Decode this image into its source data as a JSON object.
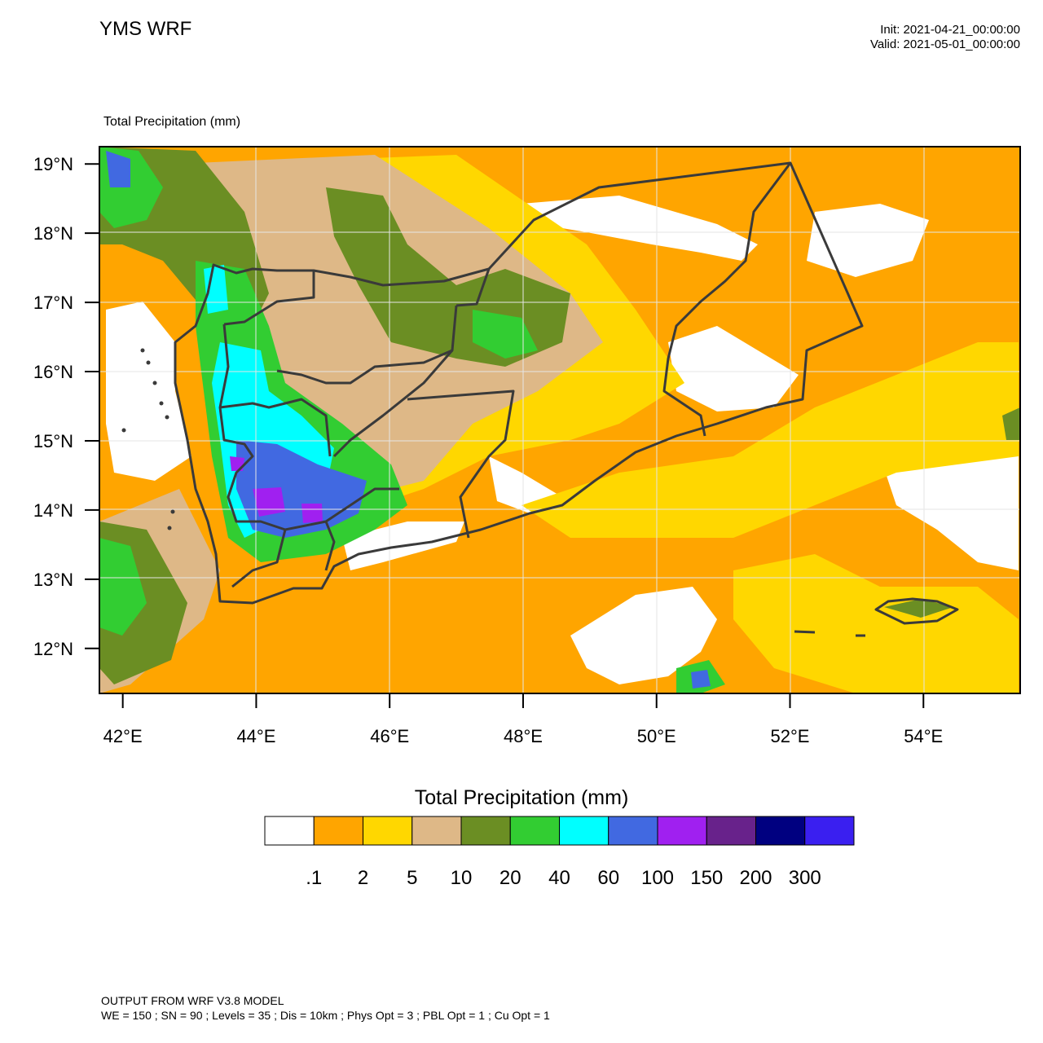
{
  "header": {
    "title": "YMS WRF",
    "init": "Init: 2021-04-21_00:00:00",
    "valid": "Valid: 2021-05-01_00:00:00"
  },
  "field_title": "Total Precipitation   (mm)",
  "map": {
    "lon_range": [
      41.65,
      55.45
    ],
    "lat_range": [
      11.35,
      19.25
    ],
    "lon_ticks": [
      {
        "value": 42,
        "label": "42°E"
      },
      {
        "value": 44,
        "label": "44°E"
      },
      {
        "value": 46,
        "label": "46°E"
      },
      {
        "value": 48,
        "label": "48°E"
      },
      {
        "value": 50,
        "label": "50°E"
      },
      {
        "value": 52,
        "label": "52°E"
      },
      {
        "value": 54,
        "label": "54°E"
      }
    ],
    "lat_ticks": [
      {
        "value": 19,
        "label": "19°N"
      },
      {
        "value": 18,
        "label": "18°N"
      },
      {
        "value": 17,
        "label": "17°N"
      },
      {
        "value": 16,
        "label": "16°N"
      },
      {
        "value": 15,
        "label": "15°N"
      },
      {
        "value": 14,
        "label": "14°N"
      },
      {
        "value": 13,
        "label": "13°N"
      },
      {
        "value": 12,
        "label": "12°N"
      }
    ]
  },
  "legend": {
    "title": "Total Precipitation  (mm)",
    "colors": [
      "#ffffff",
      "#ffa500",
      "#ffd700",
      "#deb887",
      "#6b8e23",
      "#32cd32",
      "#00ffff",
      "#4169e1",
      "#a020f0",
      "#68228b",
      "#000080",
      "#3a1ff0"
    ],
    "labels": [
      ".1",
      "2",
      "5",
      "10",
      "20",
      "40",
      "60",
      "100",
      "150",
      "200",
      "300"
    ]
  },
  "footer": {
    "line1": "OUTPUT FROM WRF V3.8 MODEL",
    "line2": "WE = 150 ; SN = 90 ; Levels = 35 ; Dis = 10km ; Phys Opt = 3 ; PBL Opt = 1 ; Cu Opt = 1"
  }
}
